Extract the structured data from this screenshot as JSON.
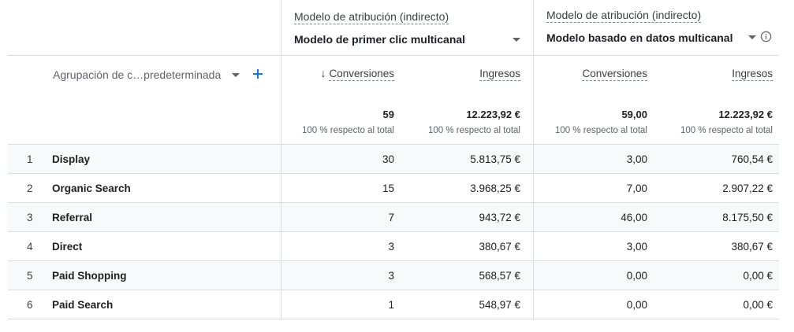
{
  "column_groups": [
    {
      "title": "Modelo de atribución (indirecto)",
      "model": "Modelo de primer clic multicanal"
    },
    {
      "title": "Modelo de atribución (indirecto)",
      "model": "Modelo basado en datos multicanal"
    }
  ],
  "dimension": {
    "label": "Agrupación de c…predeterminada"
  },
  "metrics": {
    "conversions": "Conversiones",
    "revenue": "Ingresos",
    "sort_arrow": "↓"
  },
  "totals": {
    "g1_conversions": "59",
    "g1_revenue": "12.223,92 €",
    "g2_conversions": "59,00",
    "g2_revenue": "12.223,92 €",
    "pct_label": "100 % respecto al total"
  },
  "rows": [
    {
      "rank": "1",
      "channel": "Display",
      "c1": "30",
      "r1": "5.813,75 €",
      "c2": "3,00",
      "r2": "760,54 €"
    },
    {
      "rank": "2",
      "channel": "Organic Search",
      "c1": "15",
      "r1": "3.968,25 €",
      "c2": "7,00",
      "r2": "2.907,22 €"
    },
    {
      "rank": "3",
      "channel": "Referral",
      "c1": "7",
      "r1": "943,72 €",
      "c2": "46,00",
      "r2": "8.175,50 €"
    },
    {
      "rank": "4",
      "channel": "Direct",
      "c1": "3",
      "r1": "380,67 €",
      "c2": "3,00",
      "r2": "380,67 €"
    },
    {
      "rank": "5",
      "channel": "Paid Shopping",
      "c1": "3",
      "r1": "568,57 €",
      "c2": "0,00",
      "r2": "0,00 €"
    },
    {
      "rank": "6",
      "channel": "Paid Search",
      "c1": "1",
      "r1": "548,97 €",
      "c2": "0,00",
      "r2": "0,00 €"
    }
  ],
  "colors": {
    "accent": "#1a73e8",
    "border": "#dadce0",
    "shade": "#f8f9fa"
  }
}
